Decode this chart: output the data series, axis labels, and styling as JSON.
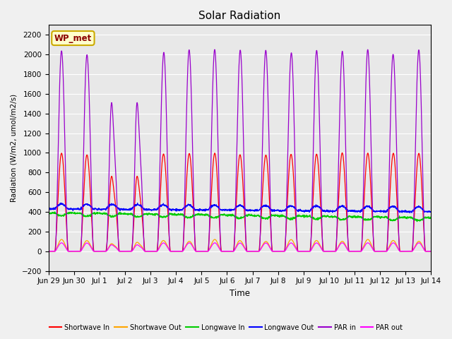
{
  "title": "Solar Radiation",
  "xlabel": "Time",
  "ylabel": "Radiation (W/m2, umol/m2/s)",
  "ylim": [
    -200,
    2300
  ],
  "yticks": [
    -200,
    0,
    200,
    400,
    600,
    800,
    1000,
    1200,
    1400,
    1600,
    1800,
    2000,
    2200
  ],
  "num_days": 15,
  "colors": {
    "shortwave_in": "#ff0000",
    "shortwave_out": "#ffa500",
    "longwave_in": "#00cc00",
    "longwave_out": "#0000ff",
    "par_in": "#9900cc",
    "par_out": "#ff00ff"
  },
  "legend_label_box": "WP_met",
  "legend_labels": [
    "Shortwave In",
    "Shortwave Out",
    "Longwave In",
    "Longwave Out",
    "PAR in",
    "PAR out"
  ],
  "fig_bg_color": "#f0f0f0",
  "plot_bg_color": "#e8e8e8",
  "tick_labels": [
    "Jun 29",
    "Jun 30",
    "Jul 1",
    "Jul 2",
    "Jul 3",
    "Jul 4",
    "Jul 5",
    "Jul 6",
    "Jul 7",
    "Jul 8",
    "Jul 9",
    "Jul 10",
    "Jul 11",
    "Jul 12",
    "Jul 13",
    "Jul 14"
  ]
}
